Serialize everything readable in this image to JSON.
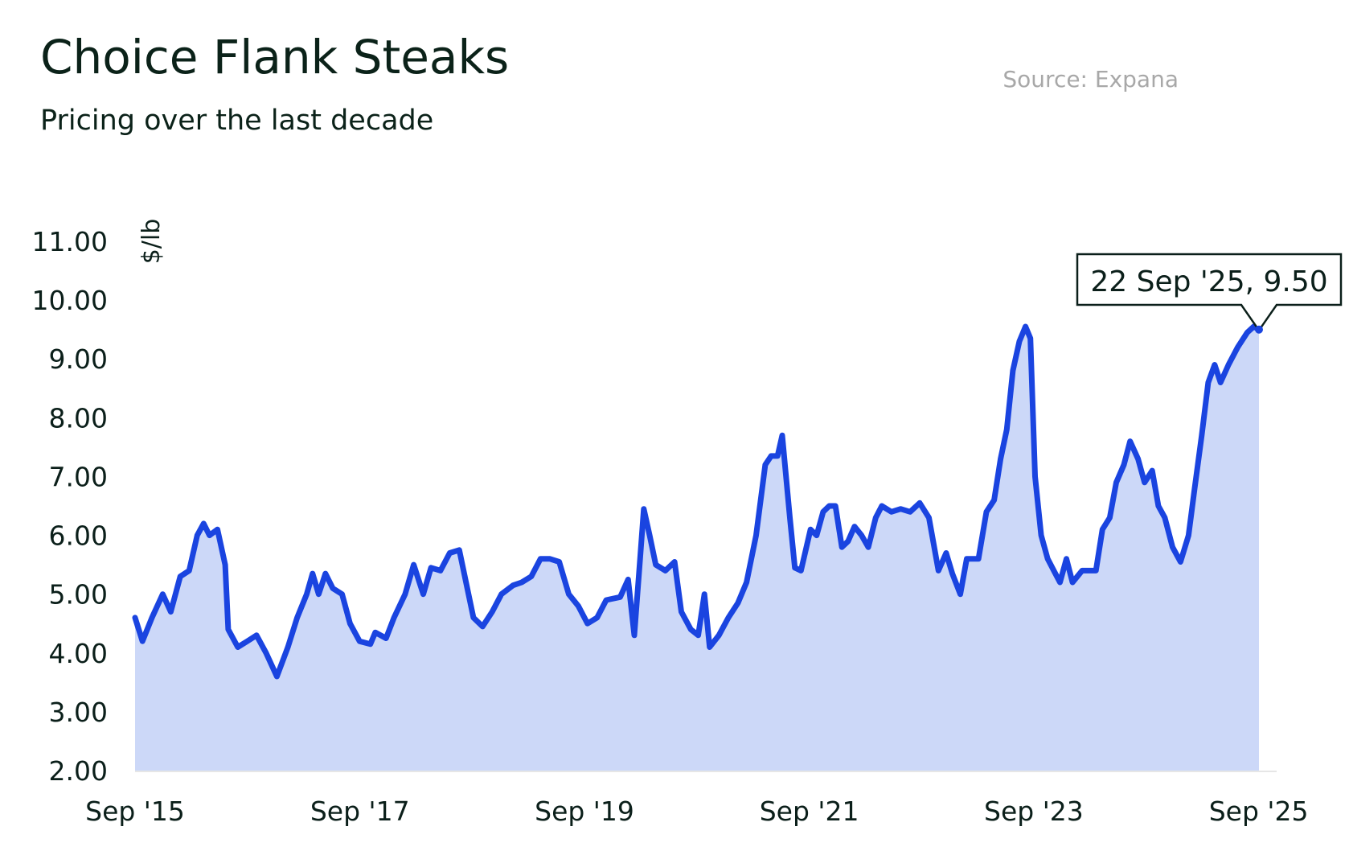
{
  "header": {
    "title": "Choice Flank Steaks",
    "subtitle": "Pricing over the last decade",
    "source": "Source: Expana"
  },
  "colors": {
    "line": "#1a44e0",
    "area": "#ccd8f8",
    "text": "#0b2219",
    "source_text": "#a8a8a8"
  },
  "chart_data": {
    "type": "area",
    "title": "Choice Flank Steaks",
    "subtitle": "Pricing over the last decade",
    "ylabel": "$/lb",
    "xlabel": "",
    "ylim": [
      2.0,
      11.0
    ],
    "yticks": [
      {
        "value": 2,
        "label": "2.00"
      },
      {
        "value": 3,
        "label": "3.00"
      },
      {
        "value": 4,
        "label": "4.00"
      },
      {
        "value": 5,
        "label": "5.00"
      },
      {
        "value": 6,
        "label": "6.00"
      },
      {
        "value": 7,
        "label": "7.00"
      },
      {
        "value": 8,
        "label": "8.00"
      },
      {
        "value": 9,
        "label": "9.00"
      },
      {
        "value": 10,
        "label": "10.00"
      },
      {
        "value": 11,
        "label": "11.00"
      }
    ],
    "xlim": [
      "2015-09-21",
      "2025-09-22"
    ],
    "xticks": [
      {
        "date": "2015-09-21",
        "label": "Sep '15"
      },
      {
        "date": "2017-09-21",
        "label": "Sep '17"
      },
      {
        "date": "2019-09-21",
        "label": "Sep '19"
      },
      {
        "date": "2021-09-21",
        "label": "Sep '21"
      },
      {
        "date": "2023-09-21",
        "label": "Sep '23"
      },
      {
        "date": "2025-09-21",
        "label": "Sep '25"
      }
    ],
    "grid": false,
    "legend": "none",
    "annotation": {
      "date": "2025-09-22",
      "value": 9.5,
      "label": "22 Sep '25, 9.50"
    },
    "series": [
      {
        "points": [
          [
            "2015-09-21",
            4.6
          ],
          [
            "2015-10-15",
            4.2
          ],
          [
            "2015-11-15",
            4.6
          ],
          [
            "2015-12-20",
            5.0
          ],
          [
            "2016-01-15",
            4.7
          ],
          [
            "2016-02-15",
            5.3
          ],
          [
            "2016-03-15",
            5.4
          ],
          [
            "2016-04-10",
            6.0
          ],
          [
            "2016-05-01",
            6.2
          ],
          [
            "2016-05-20",
            6.0
          ],
          [
            "2016-06-15",
            6.1
          ],
          [
            "2016-07-10",
            5.5
          ],
          [
            "2016-07-20",
            4.4
          ],
          [
            "2016-08-20",
            4.1
          ],
          [
            "2016-09-20",
            4.2
          ],
          [
            "2016-10-20",
            4.3
          ],
          [
            "2016-11-20",
            4.0
          ],
          [
            "2016-12-25",
            3.6
          ],
          [
            "2017-01-30",
            4.1
          ],
          [
            "2017-03-01",
            4.6
          ],
          [
            "2017-04-01",
            5.0
          ],
          [
            "2017-04-20",
            5.35
          ],
          [
            "2017-05-10",
            5.0
          ],
          [
            "2017-06-01",
            5.35
          ],
          [
            "2017-06-25",
            5.1
          ],
          [
            "2017-07-25",
            5.0
          ],
          [
            "2017-08-20",
            4.5
          ],
          [
            "2017-09-20",
            4.2
          ],
          [
            "2017-10-25",
            4.15
          ],
          [
            "2017-11-10",
            4.35
          ],
          [
            "2017-12-15",
            4.25
          ],
          [
            "2018-01-10",
            4.6
          ],
          [
            "2018-02-15",
            5.0
          ],
          [
            "2018-03-15",
            5.5
          ],
          [
            "2018-04-15",
            5.0
          ],
          [
            "2018-05-10",
            5.45
          ],
          [
            "2018-06-10",
            5.4
          ],
          [
            "2018-07-10",
            5.7
          ],
          [
            "2018-08-10",
            5.75
          ],
          [
            "2018-09-01",
            5.2
          ],
          [
            "2018-09-25",
            4.6
          ],
          [
            "2018-10-25",
            4.45
          ],
          [
            "2018-11-25",
            4.7
          ],
          [
            "2018-12-25",
            5.0
          ],
          [
            "2019-02-01",
            5.15
          ],
          [
            "2019-03-01",
            5.2
          ],
          [
            "2019-04-01",
            5.3
          ],
          [
            "2019-05-01",
            5.6
          ],
          [
            "2019-06-01",
            5.6
          ],
          [
            "2019-07-01",
            5.55
          ],
          [
            "2019-08-01",
            5.0
          ],
          [
            "2019-09-01",
            4.8
          ],
          [
            "2019-10-01",
            4.5
          ],
          [
            "2019-11-01",
            4.6
          ],
          [
            "2019-12-01",
            4.9
          ],
          [
            "2020-01-15",
            4.95
          ],
          [
            "2020-02-10",
            5.25
          ],
          [
            "2020-03-01",
            4.3
          ],
          [
            "2020-03-20",
            5.6
          ],
          [
            "2020-04-01",
            6.45
          ],
          [
            "2020-04-20",
            6.0
          ],
          [
            "2020-05-10",
            5.5
          ],
          [
            "2020-06-10",
            5.4
          ],
          [
            "2020-07-10",
            5.55
          ],
          [
            "2020-08-01",
            4.7
          ],
          [
            "2020-09-01",
            4.4
          ],
          [
            "2020-09-25",
            4.3
          ],
          [
            "2020-10-15",
            5.0
          ],
          [
            "2020-11-01",
            4.1
          ],
          [
            "2020-12-01",
            4.3
          ],
          [
            "2021-01-01",
            4.6
          ],
          [
            "2021-02-01",
            4.85
          ],
          [
            "2021-03-01",
            5.2
          ],
          [
            "2021-04-01",
            6.0
          ],
          [
            "2021-05-01",
            7.2
          ],
          [
            "2021-05-20",
            7.35
          ],
          [
            "2021-06-10",
            7.35
          ],
          [
            "2021-06-25",
            7.7
          ],
          [
            "2021-07-20",
            6.3
          ],
          [
            "2021-08-05",
            5.45
          ],
          [
            "2021-08-25",
            5.4
          ],
          [
            "2021-09-25",
            6.1
          ],
          [
            "2021-10-15",
            6.0
          ],
          [
            "2021-11-05",
            6.4
          ],
          [
            "2021-11-25",
            6.5
          ],
          [
            "2021-12-15",
            6.5
          ],
          [
            "2022-01-05",
            5.8
          ],
          [
            "2022-01-25",
            5.9
          ],
          [
            "2022-02-15",
            6.15
          ],
          [
            "2022-03-10",
            6.0
          ],
          [
            "2022-04-01",
            5.8
          ],
          [
            "2022-04-25",
            6.3
          ],
          [
            "2022-05-15",
            6.5
          ],
          [
            "2022-06-15",
            6.4
          ],
          [
            "2022-07-15",
            6.45
          ],
          [
            "2022-08-15",
            6.4
          ],
          [
            "2022-09-15",
            6.55
          ],
          [
            "2022-10-15",
            6.3
          ],
          [
            "2022-11-15",
            5.4
          ],
          [
            "2022-12-10",
            5.7
          ],
          [
            "2022-12-30",
            5.35
          ],
          [
            "2023-01-25",
            5.0
          ],
          [
            "2023-02-15",
            5.6
          ],
          [
            "2023-03-25",
            5.6
          ],
          [
            "2023-04-20",
            6.4
          ],
          [
            "2023-05-15",
            6.6
          ],
          [
            "2023-06-05",
            7.3
          ],
          [
            "2023-06-25",
            7.8
          ],
          [
            "2023-07-15",
            8.8
          ],
          [
            "2023-08-05",
            9.3
          ],
          [
            "2023-08-25",
            9.55
          ],
          [
            "2023-09-10",
            9.35
          ],
          [
            "2023-09-25",
            7.0
          ],
          [
            "2023-10-15",
            6.0
          ],
          [
            "2023-11-05",
            5.6
          ],
          [
            "2023-11-25",
            5.4
          ],
          [
            "2023-12-15",
            5.2
          ],
          [
            "2024-01-05",
            5.6
          ],
          [
            "2024-01-25",
            5.2
          ],
          [
            "2024-02-25",
            5.4
          ],
          [
            "2024-03-20",
            5.4
          ],
          [
            "2024-04-10",
            5.4
          ],
          [
            "2024-05-01",
            6.1
          ],
          [
            "2024-05-25",
            6.3
          ],
          [
            "2024-06-15",
            6.9
          ],
          [
            "2024-07-10",
            7.2
          ],
          [
            "2024-07-30",
            7.6
          ],
          [
            "2024-08-25",
            7.3
          ],
          [
            "2024-09-15",
            6.9
          ],
          [
            "2024-10-10",
            7.1
          ],
          [
            "2024-10-30",
            6.5
          ],
          [
            "2024-11-20",
            6.3
          ],
          [
            "2024-12-15",
            5.8
          ],
          [
            "2025-01-10",
            5.55
          ],
          [
            "2025-02-05",
            6.0
          ],
          [
            "2025-02-25",
            6.8
          ],
          [
            "2025-03-20",
            7.7
          ],
          [
            "2025-04-10",
            8.6
          ],
          [
            "2025-05-01",
            8.9
          ],
          [
            "2025-05-20",
            8.6
          ],
          [
            "2025-06-15",
            8.9
          ],
          [
            "2025-07-15",
            9.2
          ],
          [
            "2025-08-15",
            9.45
          ],
          [
            "2025-09-05",
            9.55
          ],
          [
            "2025-09-22",
            9.5
          ]
        ]
      }
    ]
  }
}
